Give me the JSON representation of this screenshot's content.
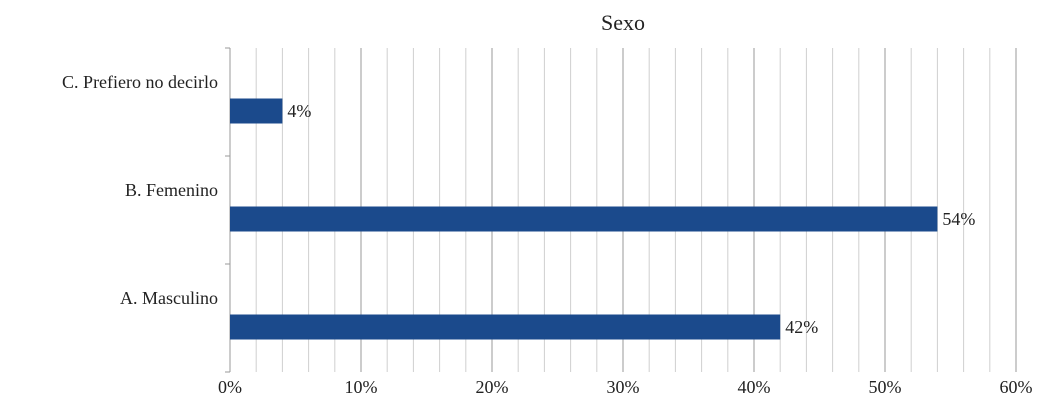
{
  "chart_data": {
    "type": "bar",
    "orientation": "horizontal",
    "title": "Sexo",
    "xlabel": "",
    "ylabel": "",
    "categories": [
      "C. Prefiero no decirlo",
      "B. Femenino",
      "A. Masculino"
    ],
    "values": [
      4,
      54,
      42
    ],
    "data_labels": [
      "4%",
      "54%",
      "42%"
    ],
    "xlim": [
      0,
      60
    ],
    "x_ticks": [
      0,
      10,
      20,
      30,
      40,
      50,
      60
    ],
    "x_tick_labels": [
      "0%",
      "10%",
      "20%",
      "30%",
      "40%",
      "50%",
      "60%"
    ],
    "minor_grid_step": 2,
    "grid": true,
    "legend": "none",
    "bar_color": "#1b4a8c",
    "major_grid_color": "#9a9a9a",
    "minor_grid_color": "#cfcfcf"
  }
}
